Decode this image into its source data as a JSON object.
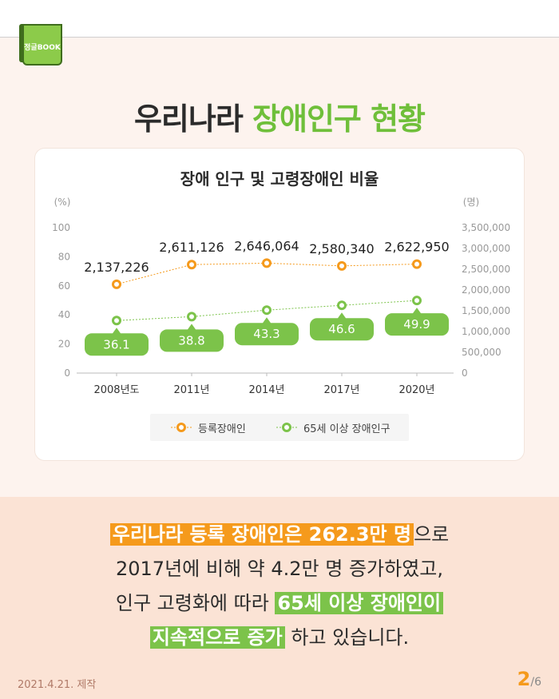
{
  "badge": {
    "label": "정글BOOK"
  },
  "title": {
    "part1": "우리나라 ",
    "part2": "장애인구 현황"
  },
  "chart_data": {
    "type": "line",
    "title": "장애 인구 및 고령장애인 비율",
    "categories": [
      "2008년도",
      "2011년",
      "2014년",
      "2017년",
      "2020년"
    ],
    "left_axis": {
      "unit": "(%)",
      "range": [
        0,
        100
      ],
      "ticks": [
        "0",
        "20",
        "40",
        "60",
        "80",
        "100"
      ]
    },
    "right_axis": {
      "unit": "(명)",
      "range": [
        0,
        3500000
      ],
      "ticks": [
        "0",
        "500,000",
        "1,000,000",
        "1,500,000",
        "2,000,000",
        "2,500,000",
        "3,000,000",
        "3,500,000"
      ]
    },
    "series": [
      {
        "name": "등록장애인",
        "axis": "right",
        "color": "#f59a1c",
        "values": [
          2137226,
          2611126,
          2646064,
          2580340,
          2622950
        ],
        "labels": [
          "2,137,226",
          "2,611,126",
          "2,646,064",
          "2,580,340",
          "2,622,950"
        ]
      },
      {
        "name": "65세 이상 장애인구",
        "axis": "left",
        "color": "#7cc34a",
        "values": [
          36.1,
          38.8,
          43.3,
          46.6,
          49.9
        ],
        "labels": [
          "36.1",
          "38.8",
          "43.3",
          "46.6",
          "49.9"
        ]
      }
    ]
  },
  "summary": {
    "l1_hl": "우리나라 등록 장애인은 262.3만 명",
    "l1_rest": "으로",
    "l2": "2017년에 비해 약 4.2만 명 증가하였고,",
    "l3_pre": "인구 고령화에 따라 ",
    "l3_hl": "65세 이상 장애인이",
    "l4_hl": "지속적으로 증가",
    "l4_rest": " 하고 있습니다."
  },
  "footer": {
    "date": "2021.4.21. 제작",
    "page": "2",
    "total": "/6"
  }
}
